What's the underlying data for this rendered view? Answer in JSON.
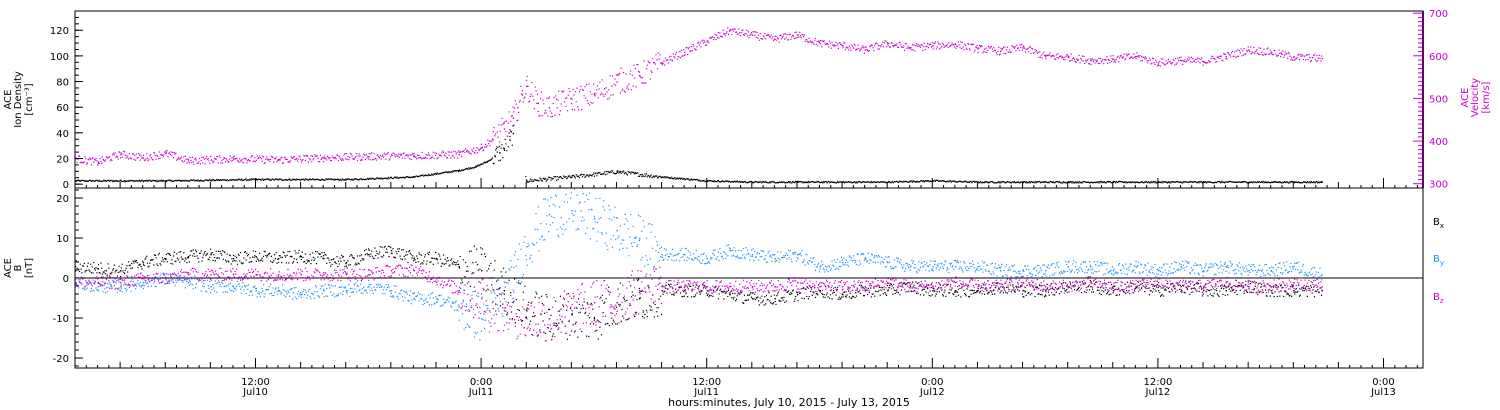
{
  "chart_data": [
    {
      "type": "scatter",
      "panel": "top",
      "left_axis_label_lines": [
        "ACE",
        "Ion Density",
        "[cm⁻³]"
      ],
      "right_axis_label_lines": [
        "ACE",
        "Velocity",
        "[km/s]"
      ],
      "ylim_left": [
        -3,
        135
      ],
      "ylim_right": [
        290,
        705
      ],
      "yticks_left": [
        "0",
        "20",
        "40",
        "60",
        "80",
        "100",
        "120"
      ],
      "yticks_right": [
        "300",
        "400",
        "500",
        "600",
        "700"
      ],
      "right_axis_color": "#cc00cc",
      "series": [
        {
          "name": "",
          "axis": "left",
          "color": "#000000",
          "x": [
            0,
            8,
            16,
            24,
            30,
            34,
            35.5,
            36.5,
            37.2,
            37.6,
            38,
            38.5,
            38.8,
            40,
            44,
            48,
            52,
            56,
            60,
            64,
            68,
            72,
            76,
            80,
            84,
            88,
            92,
            96,
            100,
            104,
            108,
            110.5
          ],
          "y": [
            3,
            3,
            4,
            4,
            6,
            11,
            14,
            18,
            22,
            25,
            28,
            35,
            40,
            3,
            6,
            10,
            6,
            3,
            2,
            2,
            2,
            2,
            3,
            2,
            2,
            2,
            2,
            2,
            2,
            2,
            2,
            2
          ]
        },
        {
          "name": "",
          "axis": "right",
          "color": "#cc00cc",
          "x": [
            0,
            2,
            4,
            6,
            8,
            10,
            14,
            18,
            22,
            26,
            30,
            34,
            36,
            37,
            38,
            38.8,
            39.2,
            39.6,
            40,
            41,
            42,
            44,
            46,
            48,
            50,
            52,
            54,
            56,
            58,
            60,
            62,
            64,
            66,
            68,
            70,
            72,
            74,
            76,
            78,
            80,
            82,
            84,
            86,
            88,
            90,
            92,
            94,
            96,
            98,
            100,
            102,
            104,
            106,
            108,
            110.5
          ],
          "y": [
            360,
            352,
            370,
            362,
            372,
            355,
            360,
            357,
            362,
            365,
            367,
            370,
            385,
            405,
            430,
            455,
            480,
            510,
            530,
            490,
            480,
            500,
            510,
            540,
            555,
            585,
            610,
            635,
            660,
            650,
            640,
            650,
            630,
            625,
            615,
            630,
            620,
            625,
            628,
            618,
            612,
            620,
            600,
            598,
            590,
            593,
            600,
            585,
            590,
            588,
            600,
            615,
            610,
            598,
            595
          ]
        }
      ]
    },
    {
      "type": "scatter",
      "panel": "bottom",
      "left_axis_label_lines": [
        "ACE",
        "B",
        "[nT]"
      ],
      "ylim": [
        -22.5,
        22.5
      ],
      "yticks": [
        "-20",
        "-10",
        "0",
        "10",
        "20"
      ],
      "legend_position": "right",
      "legend": [
        {
          "base": "B",
          "sub": "x",
          "color": "#000000"
        },
        {
          "base": "B",
          "sub": "y",
          "color": "#1e90ff"
        },
        {
          "base": "B",
          "sub": "z",
          "color": "#cc00cc"
        }
      ],
      "series": [
        {
          "name": "Bx",
          "color": "#000000",
          "x": [
            0,
            2,
            4,
            6,
            8,
            10,
            12,
            14,
            16,
            18,
            20,
            22,
            24,
            26,
            28,
            30,
            32,
            34,
            36,
            38,
            40,
            42,
            44,
            46,
            48,
            50,
            52,
            54,
            56,
            58,
            60,
            62,
            64,
            66,
            68,
            70,
            72,
            74,
            76,
            78,
            80,
            82,
            84,
            86,
            88,
            90,
            92,
            94,
            96,
            98,
            100,
            102,
            104,
            106,
            108,
            110.5
          ],
          "y": [
            3,
            2.5,
            2,
            4,
            5,
            5.5,
            6,
            5,
            5.5,
            5,
            5.5,
            5,
            4,
            6,
            7,
            5,
            5,
            3,
            2,
            -3,
            -8,
            -10,
            -9,
            -10,
            -6,
            -5,
            -3,
            -3,
            -3,
            -4,
            -5,
            -5,
            -4,
            -3,
            -4,
            -3,
            -3,
            -2,
            -3,
            -3,
            -3,
            -2,
            -3,
            -3,
            -2,
            -2,
            -3,
            -2,
            -3,
            -2,
            -3,
            -3,
            -2,
            -3,
            -3,
            -3
          ]
        },
        {
          "name": "By",
          "color": "#1e90ff",
          "x": [
            0,
            2,
            4,
            6,
            8,
            10,
            12,
            14,
            16,
            18,
            20,
            22,
            24,
            26,
            28,
            30,
            32,
            34,
            36,
            38,
            40,
            42,
            44,
            46,
            48,
            50,
            52,
            54,
            56,
            58,
            60,
            62,
            64,
            66,
            68,
            70,
            72,
            74,
            76,
            78,
            80,
            82,
            84,
            86,
            88,
            90,
            92,
            94,
            96,
            98,
            100,
            102,
            104,
            106,
            108,
            110.5
          ],
          "y": [
            -1,
            -2,
            -2,
            -1,
            0,
            -1,
            -2,
            -2,
            -3,
            -3,
            -4,
            -3,
            -3,
            -2,
            -3,
            -5,
            -5,
            -7,
            -10,
            -5,
            8,
            16,
            17,
            15,
            12,
            10,
            6,
            6,
            5,
            7,
            6,
            5,
            6,
            3,
            4,
            5,
            4,
            3,
            3,
            3,
            3,
            2,
            2,
            2,
            3,
            3,
            2,
            3,
            2,
            3,
            2,
            3,
            2,
            2,
            3,
            1
          ]
        },
        {
          "name": "Bz",
          "color": "#cc00cc",
          "x": [
            0,
            2,
            4,
            6,
            8,
            10,
            12,
            14,
            16,
            18,
            20,
            22,
            24,
            26,
            28,
            30,
            32,
            34,
            36,
            38,
            40,
            42,
            44,
            46,
            48,
            50,
            52,
            54,
            56,
            58,
            60,
            62,
            64,
            66,
            68,
            70,
            72,
            74,
            76,
            78,
            80,
            82,
            84,
            86,
            88,
            90,
            92,
            94,
            96,
            98,
            100,
            102,
            104,
            106,
            108,
            110.5
          ],
          "y": [
            -1,
            -1,
            -1,
            0,
            0,
            1,
            1,
            1,
            1,
            1,
            1,
            1,
            1,
            1,
            2,
            2,
            0,
            -3,
            -5,
            -8,
            -10,
            -10,
            -8,
            -6,
            -6,
            -3,
            -2,
            -2,
            -2,
            -2,
            -2,
            -2,
            -1,
            -2,
            -2,
            -2,
            -1,
            -2,
            -2,
            -1,
            -2,
            -2,
            -1,
            -2,
            -2,
            -1,
            -2,
            -2,
            -1,
            -2,
            -2,
            -1,
            -2,
            -2,
            -1,
            -2
          ]
        }
      ]
    }
  ],
  "x_axis": {
    "xlim_hours": [
      0,
      119.5
    ],
    "major_ticks": [
      {
        "hours": 0,
        "time": "",
        "date": ""
      },
      {
        "hours": 16,
        "time": "12:00",
        "date": "Jul10"
      },
      {
        "hours": 36,
        "time": "0:00",
        "date": "Jul11"
      },
      {
        "hours": 56,
        "time": "12:00",
        "date": "Jul11"
      },
      {
        "hours": 76,
        "time": "0:00",
        "date": "Jul12"
      },
      {
        "hours": 96,
        "time": "12:00",
        "date": "Jul12"
      },
      {
        "hours": 116,
        "time": "0:00",
        "date": "Jul13"
      }
    ],
    "title": "hours:minutes, July 10, 2015 - July 13, 2015"
  },
  "colors": {
    "density": "#000000",
    "velocity": "#cc00cc",
    "bx": "#000000",
    "by": "#1e90ff",
    "bz": "#cc00cc"
  }
}
